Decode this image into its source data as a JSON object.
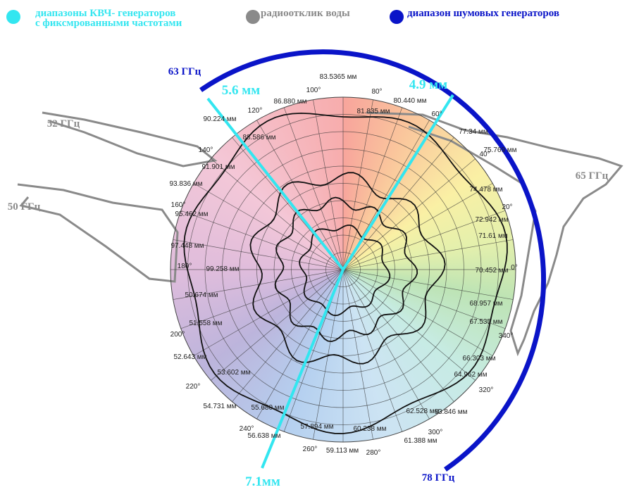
{
  "legend": [
    {
      "lines": [
        "диапазоны КВЧ- генераторов",
        "с фиксмрованными частотами"
      ],
      "color": "#33e6f0"
    },
    {
      "lines": [
        "радиоотклик воды"
      ],
      "color": "#8a8a8a"
    },
    {
      "lines": [
        "диапазон шумовых генераторов"
      ],
      "color": "#0a14c8"
    }
  ],
  "frequencies": {
    "noise_start": "63 ГГц",
    "noise_end": "78 ГГц",
    "water": [
      "52 ГГц",
      "50 ГГц",
      "65 ГГц"
    ]
  },
  "wavelengths_fixed": [
    "5.6 мм",
    "4.9 мм",
    "7.1мм"
  ],
  "degrees": [
    "0°",
    "20°",
    "40°",
    "60°",
    "80°",
    "100°",
    "120°",
    "140°",
    "160°",
    "180°",
    "200°",
    "220°",
    "240°",
    "260°",
    "280°",
    "300°",
    "320°",
    "340°"
  ],
  "outer_wavelengths": [
    "83.5365 мм",
    "81.835 мм",
    "80.440 мм",
    "77.34 мм",
    "75.769 мм",
    "74.478 мм",
    "72.942 мм",
    "71.61 мм",
    "70.452 мм",
    "68.957 мм",
    "67.535 мм",
    "66.303 мм",
    "64.962 мм",
    "63.846 мм",
    "62.528 мм",
    "61.388 мм",
    "60.238 мм",
    "59.113 мм",
    "57.894 мм",
    "56.638 мм",
    "55.680 мм",
    "54.731 мм",
    "53.602 мм",
    "52.643 мм",
    "51.558 мм",
    "50.674 мм",
    "99.258 мм",
    "97.448 мм",
    "95.462 мм",
    "93.836 мм",
    "91.901 мм",
    "90.224 мм",
    "88.586 мм",
    "86.880 мм"
  ]
}
